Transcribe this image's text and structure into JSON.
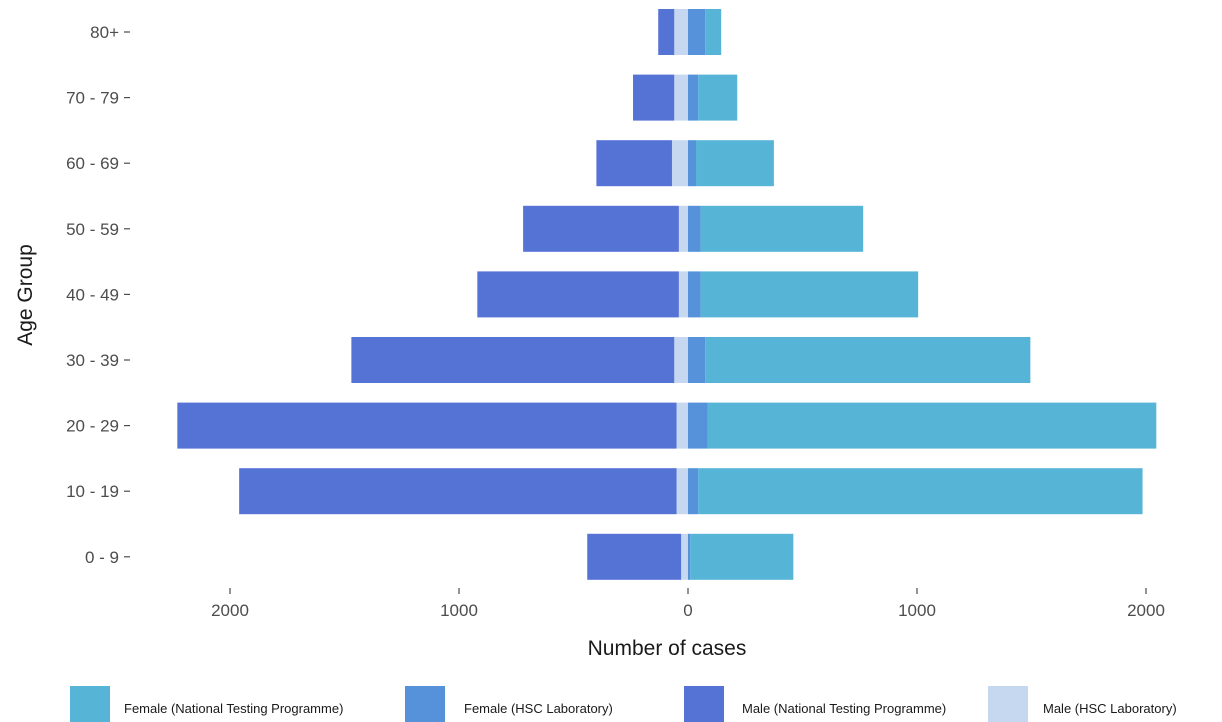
{
  "chart_data": {
    "type": "bar",
    "orientation": "horizontal-pyramid",
    "categories": [
      "0 - 9",
      "10 - 19",
      "20 - 29",
      "30 - 39",
      "40 - 49",
      "50 - 59",
      "60 - 69",
      "70 - 79",
      "80+"
    ],
    "series": [
      {
        "name": "Female (National Testing Programme)",
        "side": "right",
        "color": "#56b4d6",
        "values": [
          450,
          1940,
          1960,
          1420,
          950,
          710,
          340,
          170,
          70
        ]
      },
      {
        "name": "Female (HSC Laboratory)",
        "side": "right",
        "color": "#5592d9",
        "values": [
          10,
          45,
          85,
          75,
          55,
          55,
          35,
          45,
          75
        ]
      },
      {
        "name": "Male (National Testing Programme)",
        "side": "left",
        "color": "#5572d5",
        "values": [
          410,
          1910,
          2180,
          1410,
          880,
          680,
          330,
          180,
          70
        ]
      },
      {
        "name": "Male (HSC Laboratory)",
        "side": "left",
        "color": "#c6d8f0",
        "values": [
          30,
          50,
          50,
          60,
          40,
          40,
          70,
          60,
          60
        ]
      }
    ],
    "xlabel": "Number of cases",
    "ylabel": "Age Group",
    "xticks": [
      -2000,
      -1000,
      0,
      1000,
      2000
    ],
    "xtick_labels": [
      "2000",
      "1000",
      "0",
      "1000",
      "2000"
    ],
    "xlim": [
      -2230,
      2060
    ],
    "grid": false,
    "legend_position": "bottom"
  }
}
